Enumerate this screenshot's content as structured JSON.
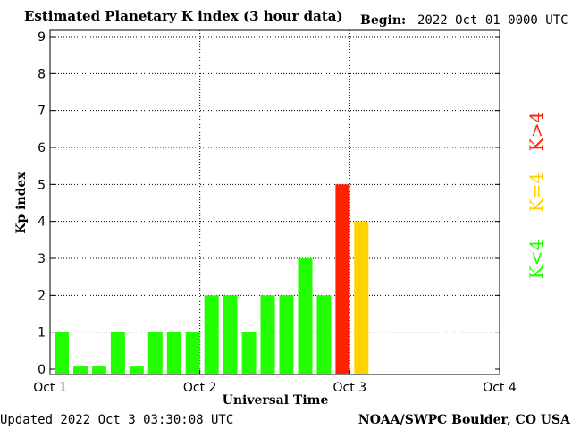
{
  "chart_data": {
    "type": "bar",
    "title": "Estimated Planetary K index (3 hour data)",
    "begin_label": "Begin:",
    "begin_value": "2022 Oct 01 0000 UTC",
    "ylabel": "Kp index",
    "xlabel": "Universal Time",
    "ylim": [
      0,
      9
    ],
    "yticks": [
      "0",
      "1",
      "2",
      "3",
      "4",
      "5",
      "6",
      "7",
      "8",
      "9"
    ],
    "xticks": [
      "Oct 1",
      "Oct 2",
      "Oct 3",
      "Oct 4"
    ],
    "values": [
      1,
      0.07,
      0.07,
      1,
      0.07,
      1,
      1,
      1,
      2,
      2,
      1,
      2,
      2,
      3,
      2,
      5,
      4
    ],
    "colors": {
      "low": "#22ff00",
      "equal": "#ffd200",
      "high": "#ff2200"
    },
    "legend": [
      "K<4",
      "K=4",
      "K>4"
    ],
    "grid": true
  },
  "footer": {
    "updated": "Updated 2022 Oct  3 03:30:08 UTC",
    "source": "NOAA/SWPC Boulder, CO USA"
  }
}
